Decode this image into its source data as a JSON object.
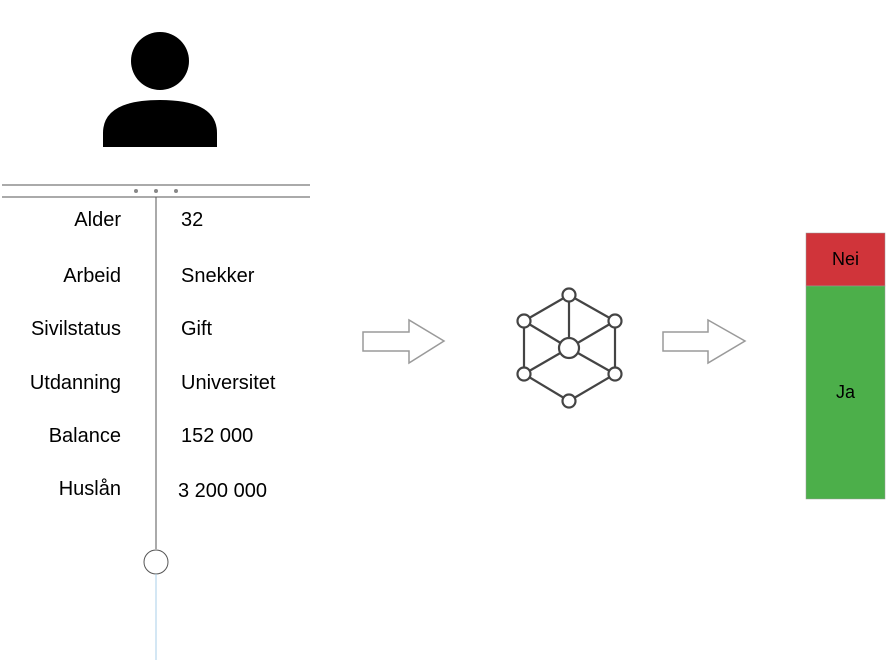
{
  "person": {
    "icon": "person-icon",
    "attributes": [
      {
        "label": "Alder",
        "value": "32"
      },
      {
        "label": "Arbeid",
        "value": "Snekker"
      },
      {
        "label": "Sivilstatus",
        "value": "Gift"
      },
      {
        "label": "Utdanning",
        "value": "Universitet"
      },
      {
        "label": "Balance",
        "value": "152 000"
      },
      {
        "label": "Huslån",
        "value": "3 200 000"
      }
    ]
  },
  "model": {
    "icon": "network-model-icon"
  },
  "arrows": {
    "icon": "right-arrow-icon"
  },
  "outcome": {
    "segments": [
      {
        "label": "Nei",
        "color": "#d0343a"
      },
      {
        "label": "Ja",
        "color": "#4caf4a"
      }
    ]
  }
}
